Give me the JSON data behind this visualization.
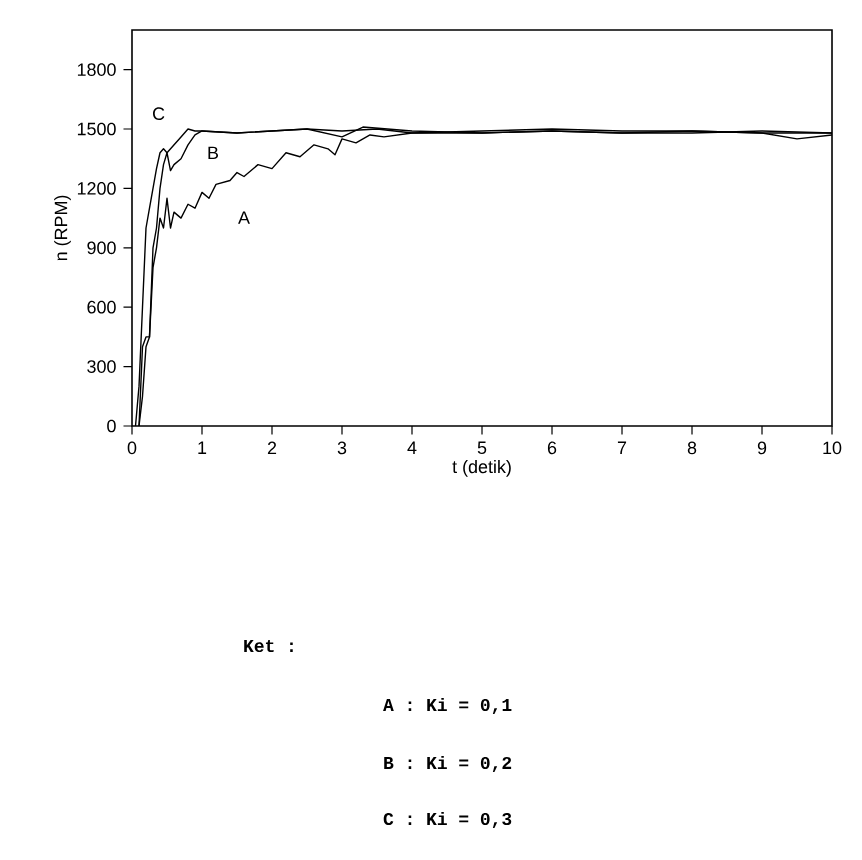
{
  "chart_data": {
    "type": "line",
    "xlabel": "t (detik)",
    "ylabel": "n (RPM)",
    "xlim": [
      0,
      10
    ],
    "ylim": [
      0,
      2000
    ],
    "xticks": [
      0,
      1,
      2,
      3,
      4,
      5,
      6,
      7,
      8,
      9,
      10
    ],
    "yticks": [
      0,
      300,
      600,
      900,
      1200,
      1500,
      1800
    ],
    "legend": false,
    "grid": false,
    "marker": "none",
    "line_style": "solid",
    "series": [
      {
        "name": "A",
        "color": "#000000",
        "x": [
          0.1,
          0.15,
          0.2,
          0.25,
          0.3,
          0.35,
          0.4,
          0.45,
          0.5,
          0.55,
          0.6,
          0.7,
          0.8,
          0.9,
          1.0,
          1.1,
          1.2,
          1.4,
          1.5,
          1.6,
          1.8,
          2.0,
          2.2,
          2.4,
          2.6,
          2.8,
          2.9,
          3.0,
          3.2,
          3.4,
          3.6,
          4.0,
          5.0,
          6.0,
          7.0,
          8.0,
          9.0,
          10.0
        ],
        "values": [
          0,
          150,
          400,
          450,
          800,
          900,
          1050,
          1000,
          1150,
          1000,
          1080,
          1050,
          1120,
          1100,
          1180,
          1150,
          1220,
          1240,
          1280,
          1260,
          1320,
          1300,
          1380,
          1360,
          1420,
          1400,
          1370,
          1450,
          1430,
          1470,
          1460,
          1480,
          1480,
          1490,
          1480,
          1480,
          1490,
          1480
        ]
      },
      {
        "name": "B",
        "color": "#000000",
        "x": [
          0.1,
          0.15,
          0.2,
          0.25,
          0.3,
          0.35,
          0.4,
          0.45,
          0.5,
          0.55,
          0.6,
          0.7,
          0.8,
          0.9,
          1.0,
          1.5,
          2.0,
          2.5,
          3.0,
          3.3,
          4.0,
          5.0,
          6.0,
          7.0,
          8.0,
          9.0,
          10.0
        ],
        "values": [
          0,
          400,
          450,
          450,
          900,
          1000,
          1200,
          1320,
          1380,
          1290,
          1320,
          1350,
          1420,
          1470,
          1490,
          1480,
          1490,
          1500,
          1460,
          1510,
          1490,
          1480,
          1490,
          1480,
          1490,
          1480,
          1480
        ]
      },
      {
        "name": "C",
        "color": "#000000",
        "x": [
          0.05,
          0.1,
          0.15,
          0.2,
          0.25,
          0.3,
          0.35,
          0.4,
          0.45,
          0.5,
          0.6,
          0.7,
          0.8,
          0.9,
          1.0,
          1.5,
          2.0,
          2.5,
          3.0,
          3.5,
          4.0,
          5.0,
          6.0,
          7.0,
          8.0,
          9.0,
          9.5,
          10.0
        ],
        "values": [
          0,
          200,
          600,
          1000,
          1100,
          1200,
          1300,
          1380,
          1400,
          1380,
          1420,
          1460,
          1500,
          1490,
          1490,
          1480,
          1490,
          1500,
          1490,
          1500,
          1480,
          1490,
          1500,
          1490,
          1490,
          1480,
          1450,
          1470
        ]
      }
    ],
    "annotations": [
      "Ket :",
      "A : Ki = 0,1",
      "B : Ki = 0,2",
      "C : Ki = 0,3"
    ]
  }
}
